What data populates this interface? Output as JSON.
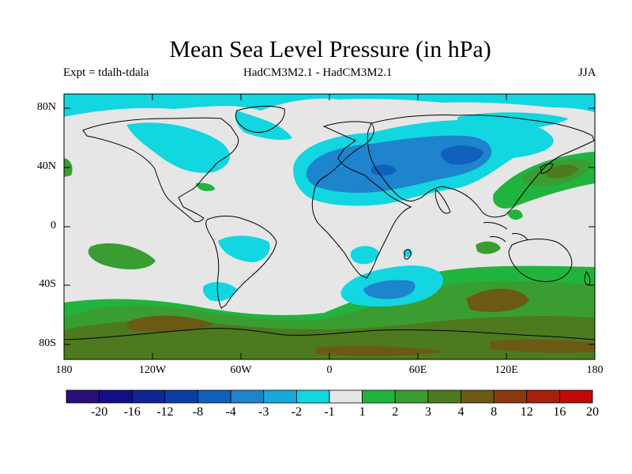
{
  "title": "Mean Sea Level Pressure (in hPa)",
  "experiment": "Expt = tdalh-tdala",
  "model_label": "HadCM3M2.1 - HadCM3M2.1",
  "season": "JJA",
  "lat_ticks": [
    "80N",
    "40N",
    "0",
    "40S",
    "80S"
  ],
  "lon_ticks": [
    "180",
    "120W",
    "60W",
    "0",
    "60E",
    "120E",
    "180"
  ],
  "colorbar": {
    "labels": [
      "-20",
      "-16",
      "-12",
      "-8",
      "-4",
      "-3",
      "-2",
      "-1",
      "1",
      "2",
      "3",
      "4",
      "8",
      "12",
      "16",
      "20"
    ],
    "colors": [
      "#2a0d7a",
      "#150e8c",
      "#0e2596",
      "#0a3ea4",
      "#1060bd",
      "#1e84cd",
      "#16a9dc",
      "#12d6e0",
      "#e6e6e6",
      "#20b43e",
      "#3a9d32",
      "#4d7a1e",
      "#6a5a14",
      "#8a3a10",
      "#a6200e",
      "#c00a0a"
    ]
  },
  "map": {
    "background": "#e6e6e6"
  }
}
